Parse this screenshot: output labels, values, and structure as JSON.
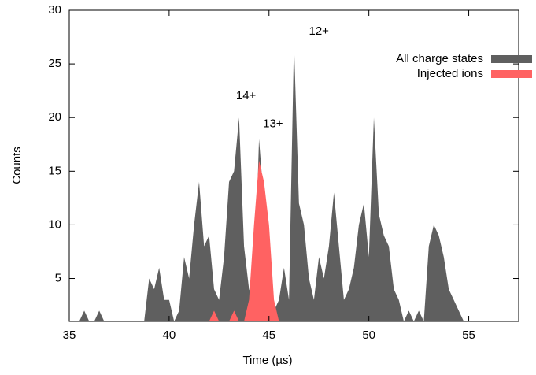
{
  "chart_data": {
    "type": "area",
    "xlabel": "Time (µs)",
    "ylabel": "Counts",
    "xlim": [
      35,
      57.5
    ],
    "ylim": [
      1,
      30
    ],
    "xticks": [
      35,
      40,
      45,
      50,
      55
    ],
    "yticks": [
      5,
      10,
      15,
      20,
      25,
      30
    ],
    "legend": "upper right",
    "x": [
      35,
      35.25,
      35.5,
      35.75,
      36,
      36.25,
      36.5,
      36.75,
      37,
      37.25,
      37.5,
      37.75,
      38,
      38.25,
      38.5,
      38.75,
      39,
      39.25,
      39.5,
      39.75,
      40,
      40.25,
      40.5,
      40.75,
      41,
      41.25,
      41.5,
      41.75,
      42,
      42.25,
      42.5,
      42.75,
      43,
      43.25,
      43.5,
      43.75,
      44,
      44.25,
      44.5,
      44.75,
      45,
      45.25,
      45.5,
      45.75,
      46,
      46.25,
      46.5,
      46.75,
      47,
      47.25,
      47.5,
      47.75,
      48,
      48.25,
      48.5,
      48.75,
      49,
      49.25,
      49.5,
      49.75,
      50,
      50.25,
      50.5,
      50.75,
      51,
      51.25,
      51.5,
      51.75,
      52,
      52.25,
      52.5,
      52.75,
      53,
      53.25,
      53.5,
      53.75,
      54,
      54.25,
      54.5,
      54.75,
      55
    ],
    "series": [
      {
        "name": "All charge states",
        "color": "#5f5f5f",
        "values": [
          1,
          1,
          1,
          2,
          1,
          1,
          2,
          1,
          1,
          1,
          1,
          1,
          1,
          1,
          1,
          1,
          5,
          4,
          6,
          3,
          3,
          1,
          2,
          7,
          5,
          10,
          14,
          8,
          9,
          4,
          3,
          7,
          14,
          15,
          20,
          8,
          4,
          3,
          18,
          12,
          5,
          2,
          3,
          6,
          3,
          27,
          12,
          10,
          5,
          3,
          7,
          5,
          8,
          13,
          8,
          3,
          4,
          6,
          10,
          12,
          7,
          20,
          11,
          9,
          8,
          4,
          3,
          1,
          2,
          1,
          2,
          1,
          8,
          10,
          9,
          7,
          4,
          3,
          2,
          1,
          1
        ]
      },
      {
        "name": "Injected ions",
        "color": "#ff6262",
        "values": [
          1,
          1,
          1,
          1,
          1,
          1,
          1,
          1,
          1,
          1,
          1,
          1,
          1,
          1,
          1,
          1,
          1,
          1,
          1,
          1,
          1,
          1,
          1,
          1,
          1,
          1,
          1,
          1,
          1,
          2,
          1,
          1,
          1,
          2,
          1,
          1,
          3,
          10,
          16,
          14,
          10,
          3,
          1,
          1,
          1,
          1,
          1,
          1,
          1,
          1,
          1,
          1,
          1,
          1,
          1,
          1,
          1,
          1,
          1,
          1,
          1,
          1,
          1,
          1,
          1,
          1,
          1,
          1,
          1,
          1,
          1,
          1,
          1,
          1,
          1,
          1,
          1,
          1,
          1,
          1,
          1
        ]
      }
    ],
    "annotations": [
      {
        "text": "12+",
        "x": 47.5,
        "y": 28.0
      },
      {
        "text": "14+",
        "x": 43.85,
        "y": 22.0
      },
      {
        "text": "13+",
        "x": 45.2,
        "y": 19.4
      }
    ]
  }
}
